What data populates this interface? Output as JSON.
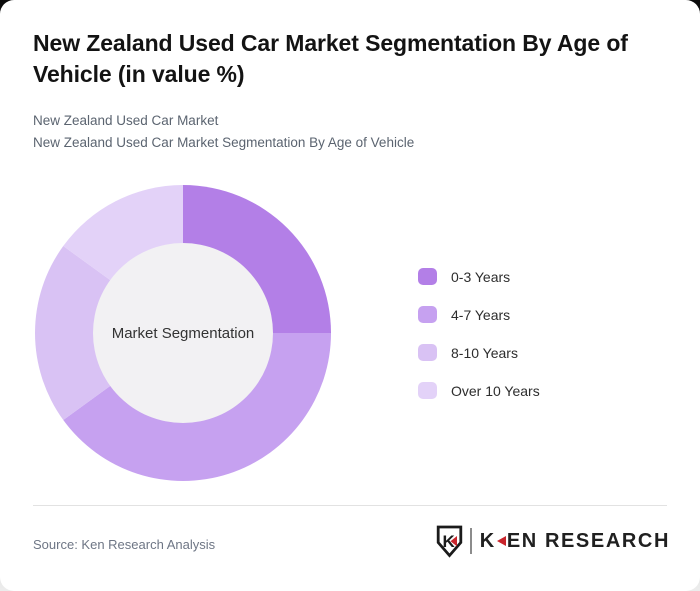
{
  "header": {
    "title": "New Zealand Used Car Market Segmentation By Age of Vehicle (in value %)",
    "subtitle_line1": "New Zealand Used Car Market",
    "subtitle_line2": "New Zealand Used Car Market Segmentation By Age of Vehicle"
  },
  "chart_data": {
    "type": "pie",
    "subtype": "donut",
    "title": "New Zealand Used Car Market Segmentation By Age of Vehicle (in value %)",
    "center_label": "Market Segmentation",
    "categories": [
      "0-3 Years",
      "4-7 Years",
      "8-10 Years",
      "Over 10 Years"
    ],
    "values": [
      25,
      40,
      20,
      15
    ],
    "unit": "percent of market value",
    "colors": [
      "#b37fe7",
      "#c6a1f0",
      "#d9c2f4",
      "#e3d2f8"
    ],
    "inner_hole_color": "#f2f1f3",
    "start_angle_deg": 0,
    "direction": "clockwise",
    "legend_position": "right",
    "data_labels_shown": false
  },
  "footer": {
    "source": "Source: Ken Research Analysis",
    "logo": {
      "shield_letter": "K",
      "wordmark_k": "K",
      "wordmark_rest": "EN RESEARCH",
      "accent_color": "#c9252c",
      "text_color": "#202020"
    }
  }
}
